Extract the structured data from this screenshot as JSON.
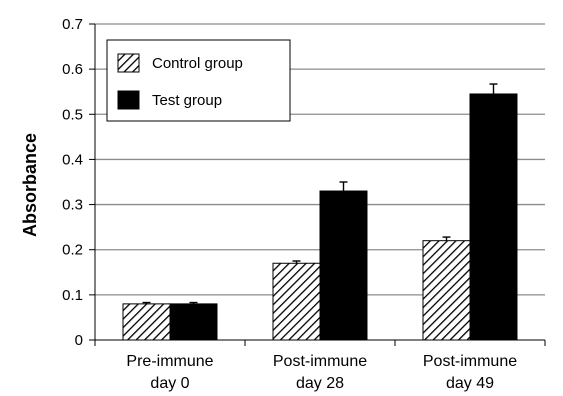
{
  "chart_data": {
    "type": "bar",
    "categories": [
      [
        "Pre-immune",
        "day 0"
      ],
      [
        "Post-immune",
        "day 28"
      ],
      [
        "Post-immune",
        "day 49"
      ]
    ],
    "series": [
      {
        "name": "Control group",
        "values": [
          0.08,
          0.17,
          0.22
        ],
        "errors": [
          0.003,
          0.005,
          0.008
        ],
        "pattern": "hatched"
      },
      {
        "name": "Test group",
        "values": [
          0.08,
          0.33,
          0.545
        ],
        "errors": [
          0.003,
          0.02,
          0.022
        ],
        "color": "#000000"
      }
    ],
    "ylabel": "Absorbance",
    "xlabel": "",
    "ylim": [
      0,
      0.7
    ],
    "yticks": [
      "0",
      "0.1",
      "0.2",
      "0.3",
      "0.4",
      "0.5",
      "0.6",
      "0.7"
    ],
    "grid": true,
    "legend_position": "top-left"
  }
}
